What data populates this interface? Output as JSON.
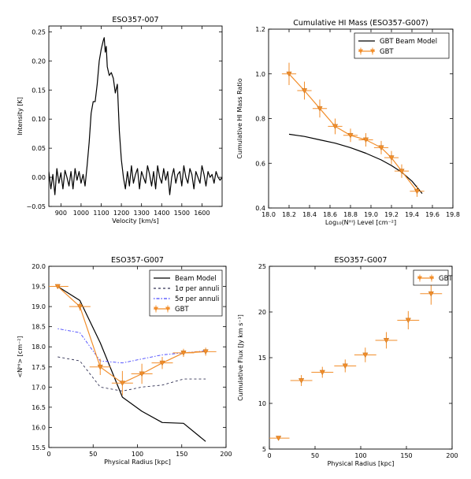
{
  "chart_data": [
    {
      "type": "line",
      "title": "ESO357-007",
      "xlabel": "Velocity [km/s]",
      "ylabel": "Intensity [K]",
      "xlim": [
        840,
        1700
      ],
      "ylim": [
        -0.05,
        0.26
      ],
      "xticks": [
        "900",
        "1000",
        "1100",
        "1200",
        "1300",
        "1400",
        "1500",
        "1600"
      ],
      "yticks": [
        "0.25",
        "0.20",
        "0.15",
        "0.10",
        "0.05",
        "0.00",
        "−0.05"
      ],
      "series": [
        {
          "x": [
            840,
            850,
            860,
            870,
            880,
            890,
            900,
            910,
            920,
            930,
            940,
            950,
            960,
            970,
            980,
            990,
            1000,
            1010,
            1020,
            1030,
            1040,
            1050,
            1060,
            1070,
            1080,
            1090,
            1100,
            1110,
            1115,
            1120,
            1125,
            1130,
            1140,
            1150,
            1160,
            1170,
            1180,
            1190,
            1200,
            1210,
            1220,
            1230,
            1240,
            1250,
            1260,
            1270,
            1280,
            1290,
            1300,
            1310,
            1320,
            1330,
            1340,
            1350,
            1360,
            1370,
            1380,
            1390,
            1400,
            1410,
            1420,
            1430,
            1440,
            1450,
            1460,
            1470,
            1480,
            1490,
            1500,
            1510,
            1520,
            1530,
            1540,
            1550,
            1560,
            1570,
            1580,
            1590,
            1600,
            1610,
            1620,
            1630,
            1640,
            1650,
            1660,
            1670,
            1680,
            1690,
            1700
          ],
          "values": [
            0.01,
            -0.02,
            0.005,
            -0.03,
            0.015,
            -0.01,
            0.008,
            -0.02,
            0.012,
            0.0,
            -0.015,
            0.01,
            -0.02,
            0.015,
            -0.005,
            0.01,
            -0.01,
            0.005,
            -0.015,
            0.02,
            0.06,
            0.11,
            0.13,
            0.13,
            0.16,
            0.2,
            0.22,
            0.235,
            0.24,
            0.215,
            0.225,
            0.19,
            0.175,
            0.18,
            0.17,
            0.145,
            0.16,
            0.08,
            0.03,
            0.0,
            -0.02,
            0.01,
            -0.015,
            0.02,
            -0.01,
            0.005,
            0.015,
            -0.02,
            0.01,
            0.0,
            -0.01,
            0.02,
            0.005,
            -0.015,
            0.01,
            -0.02,
            0.02,
            0.0,
            -0.01,
            0.015,
            -0.005,
            0.01,
            -0.03,
            0.0,
            0.015,
            -0.01,
            0.005,
            0.01,
            -0.015,
            0.02,
            0.0,
            -0.01,
            0.015,
            0.005,
            -0.02,
            0.01,
            0.0,
            -0.01,
            0.02,
            0.005,
            -0.015,
            0.01,
            0.0,
            0.005,
            -0.01,
            0.01,
            0.0,
            -0.005,
            0.0
          ]
        }
      ]
    },
    {
      "type": "line",
      "title": "Cumulative HI Mass (ESO357-G007)",
      "xlabel": "Log₁₀(Nᴴᴵ) Level [cm⁻²]",
      "ylabel": "Cumulative HI Mass Ratio",
      "xlim": [
        18.0,
        19.8
      ],
      "ylim": [
        0.4,
        1.2
      ],
      "xticks": [
        "18.0",
        "18.2",
        "18.4",
        "18.6",
        "18.8",
        "19.0",
        "19.2",
        "19.4",
        "19.6",
        "19.8"
      ],
      "yticks": [
        "1.2",
        "1.0",
        "0.8",
        "0.6",
        "0.4"
      ],
      "legend": "top-right",
      "series": [
        {
          "name": "GBT Beam Model",
          "x": [
            18.2,
            18.35,
            18.5,
            18.65,
            18.8,
            18.95,
            19.1,
            19.2,
            19.3,
            19.4,
            19.5
          ],
          "values": [
            0.73,
            0.72,
            0.705,
            0.69,
            0.67,
            0.645,
            0.615,
            0.59,
            0.56,
            0.52,
            0.465
          ]
        },
        {
          "name": "GBT",
          "x": [
            18.2,
            18.35,
            18.5,
            18.65,
            18.8,
            18.95,
            19.1,
            19.2,
            19.3,
            19.45
          ],
          "values": [
            1.0,
            0.925,
            0.845,
            0.765,
            0.725,
            0.705,
            0.67,
            0.625,
            0.565,
            0.475
          ],
          "xerr": 0.07,
          "yerr": [
            0.05,
            0.04,
            0.04,
            0.035,
            0.03,
            0.03,
            0.03,
            0.03,
            0.03,
            0.025
          ]
        }
      ]
    },
    {
      "type": "line",
      "title": "ESO357-G007",
      "xlabel": "Physical Radius [kpc]",
      "ylabel": "<Nᴴᴵ> [cm⁻²]",
      "xlim": [
        0,
        200
      ],
      "ylim": [
        15.5,
        20.0
      ],
      "xticks": [
        "0",
        "50",
        "100",
        "150",
        "200"
      ],
      "yticks": [
        "20.0",
        "19.5",
        "19.0",
        "18.5",
        "18.0",
        "17.5",
        "17.0",
        "16.5",
        "16.0",
        "15.5"
      ],
      "legend": "top-right",
      "series": [
        {
          "name": "Beam Model",
          "x": [
            10,
            35,
            58,
            83,
            105,
            128,
            152,
            177
          ],
          "values": [
            19.5,
            19.15,
            18.1,
            16.75,
            16.4,
            16.12,
            16.1,
            15.65
          ]
        },
        {
          "name": "1σ per annuli",
          "x": [
            10,
            35,
            58,
            83,
            105,
            128,
            152,
            177
          ],
          "values": [
            17.75,
            17.65,
            17.0,
            16.9,
            17.0,
            17.05,
            17.2,
            17.2
          ]
        },
        {
          "name": "5σ per annuli",
          "x": [
            10,
            35,
            58,
            83,
            105,
            128,
            152,
            177
          ],
          "values": [
            18.45,
            18.35,
            17.65,
            17.6,
            17.7,
            17.8,
            17.85,
            17.9
          ]
        },
        {
          "name": "GBT",
          "x": [
            10,
            35,
            58,
            83,
            105,
            128,
            152,
            177
          ],
          "values": [
            19.5,
            19.0,
            17.5,
            17.1,
            17.33,
            17.6,
            17.85,
            17.88
          ],
          "xerr": 12,
          "yerr": [
            0.05,
            0.1,
            0.2,
            0.3,
            0.25,
            0.15,
            0.1,
            0.1
          ]
        }
      ]
    },
    {
      "type": "scatter",
      "title": "ESO357-G007",
      "xlabel": "Physical Radius [kpc]",
      "ylabel": "Cumulative Flux [Jy km s⁻¹]",
      "xlim": [
        0,
        200
      ],
      "ylim": [
        5,
        25
      ],
      "xticks": [
        "0",
        "50",
        "100",
        "150",
        "200"
      ],
      "yticks": [
        "25",
        "20",
        "15",
        "10",
        "5"
      ],
      "legend": "top-right",
      "series": [
        {
          "name": "GBT",
          "x": [
            10,
            35,
            58,
            83,
            105,
            128,
            152,
            177
          ],
          "values": [
            6.2,
            12.5,
            13.4,
            14.1,
            15.3,
            16.9,
            19.1,
            22.0
          ],
          "xerr": 12,
          "yerr": [
            0.2,
            0.6,
            0.6,
            0.7,
            0.8,
            0.9,
            1.0,
            1.2
          ]
        }
      ]
    }
  ],
  "colors": {
    "gbt": "#f28e2b",
    "model": "#000000",
    "sigma1": "#333355",
    "sigma5": "#4444ff"
  }
}
